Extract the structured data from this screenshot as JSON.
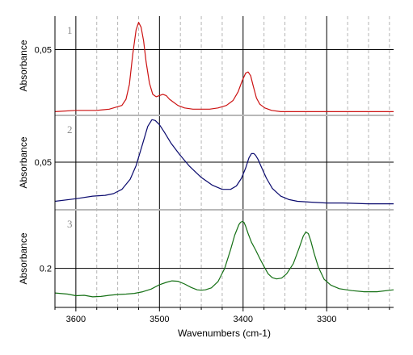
{
  "chart_data": [
    {
      "type": "line",
      "panel_number": "1",
      "ylabel": "Absorbance",
      "y_ticks": [
        {
          "value": 0.05,
          "label": "0,05"
        }
      ],
      "ylim": [
        -0.003,
        0.077
      ],
      "color": "#cc1111",
      "series": [
        {
          "x": [
            3625,
            3600,
            3575,
            3560,
            3545,
            3540,
            3536,
            3532,
            3528,
            3525,
            3522,
            3519,
            3516,
            3512,
            3508,
            3504,
            3500,
            3496,
            3492,
            3488,
            3484,
            3478,
            3470,
            3460,
            3450,
            3440,
            3430,
            3420,
            3412,
            3406,
            3401,
            3397,
            3394,
            3391,
            3388,
            3384,
            3380,
            3374,
            3366,
            3355,
            3340,
            3320,
            3300,
            3280,
            3250,
            3220
          ],
          "values": [
            0.0,
            0.001,
            0.001,
            0.002,
            0.005,
            0.01,
            0.022,
            0.046,
            0.066,
            0.072,
            0.068,
            0.057,
            0.04,
            0.023,
            0.014,
            0.012,
            0.013,
            0.014,
            0.013,
            0.01,
            0.008,
            0.005,
            0.003,
            0.002,
            0.002,
            0.002,
            0.003,
            0.005,
            0.009,
            0.016,
            0.025,
            0.031,
            0.032,
            0.029,
            0.021,
            0.011,
            0.006,
            0.003,
            0.001,
            0.0,
            0.0,
            0.0,
            0.0,
            0.0,
            0.0,
            0.0
          ]
        }
      ]
    },
    {
      "type": "line",
      "panel_number": "2",
      "ylabel": "Absorbance",
      "y_ticks": [
        {
          "value": 0.05,
          "label": "0,05"
        }
      ],
      "ylim": [
        -0.006,
        0.105
      ],
      "color": "#0a0a6e",
      "series": [
        {
          "x": [
            3625,
            3600,
            3580,
            3565,
            3555,
            3545,
            3535,
            3528,
            3520,
            3514,
            3509,
            3505,
            3500,
            3494,
            3486,
            3476,
            3464,
            3450,
            3437,
            3425,
            3415,
            3408,
            3402,
            3397,
            3393,
            3390,
            3387,
            3385,
            3382,
            3378,
            3372,
            3365,
            3355,
            3345,
            3335,
            3320,
            3300,
            3280,
            3250,
            3220
          ],
          "values": [
            0.004,
            0.007,
            0.01,
            0.011,
            0.013,
            0.018,
            0.03,
            0.046,
            0.072,
            0.092,
            0.1,
            0.099,
            0.094,
            0.085,
            0.072,
            0.059,
            0.045,
            0.032,
            0.023,
            0.018,
            0.018,
            0.022,
            0.031,
            0.043,
            0.055,
            0.06,
            0.06,
            0.058,
            0.053,
            0.044,
            0.031,
            0.019,
            0.01,
            0.006,
            0.004,
            0.003,
            0.002,
            0.002,
            0.001,
            0.001
          ]
        }
      ]
    },
    {
      "type": "line",
      "panel_number": "3",
      "ylabel": "Absorbance",
      "y_ticks": [
        {
          "value": 0.2,
          "label": "0.2"
        }
      ],
      "ylim": [
        0.1,
        0.35
      ],
      "color": "#157015",
      "series": [
        {
          "x": [
            3625,
            3610,
            3600,
            3590,
            3580,
            3570,
            3560,
            3550,
            3540,
            3530,
            3520,
            3510,
            3500,
            3492,
            3485,
            3478,
            3470,
            3462,
            3455,
            3450,
            3445,
            3438,
            3430,
            3422,
            3415,
            3410,
            3405,
            3403,
            3401,
            3399,
            3397,
            3394,
            3390,
            3385,
            3380,
            3375,
            3370,
            3365,
            3360,
            3354,
            3348,
            3340,
            3333,
            3328,
            3325,
            3322,
            3319,
            3315,
            3310,
            3303,
            3295,
            3285,
            3270,
            3255,
            3240,
            3220
          ],
          "values": [
            0.137,
            0.134,
            0.13,
            0.131,
            0.127,
            0.128,
            0.131,
            0.133,
            0.134,
            0.136,
            0.14,
            0.147,
            0.158,
            0.164,
            0.168,
            0.167,
            0.16,
            0.151,
            0.145,
            0.144,
            0.145,
            0.15,
            0.166,
            0.2,
            0.248,
            0.285,
            0.312,
            0.318,
            0.32,
            0.318,
            0.308,
            0.289,
            0.267,
            0.247,
            0.225,
            0.205,
            0.186,
            0.176,
            0.173,
            0.175,
            0.186,
            0.212,
            0.252,
            0.283,
            0.293,
            0.289,
            0.27,
            0.238,
            0.203,
            0.172,
            0.157,
            0.148,
            0.143,
            0.14,
            0.14,
            0.145
          ]
        }
      ]
    }
  ],
  "x_axis": {
    "label": "Wavenumbers (cm-1)",
    "xlim": [
      3625,
      3220
    ],
    "ticks": [
      {
        "value": 3600,
        "label": "3600"
      },
      {
        "value": 3500,
        "label": "3500"
      },
      {
        "value": 3400,
        "label": "3400"
      },
      {
        "value": 3300,
        "label": "3300"
      }
    ],
    "minor_step": 25
  },
  "colors": {
    "red": "#cc1111",
    "navy": "#0a0a6e",
    "green": "#157015",
    "separator": "#b8b8b8",
    "minor_grid": "#b5b5b5",
    "panel_number": "#8a8a8a"
  }
}
